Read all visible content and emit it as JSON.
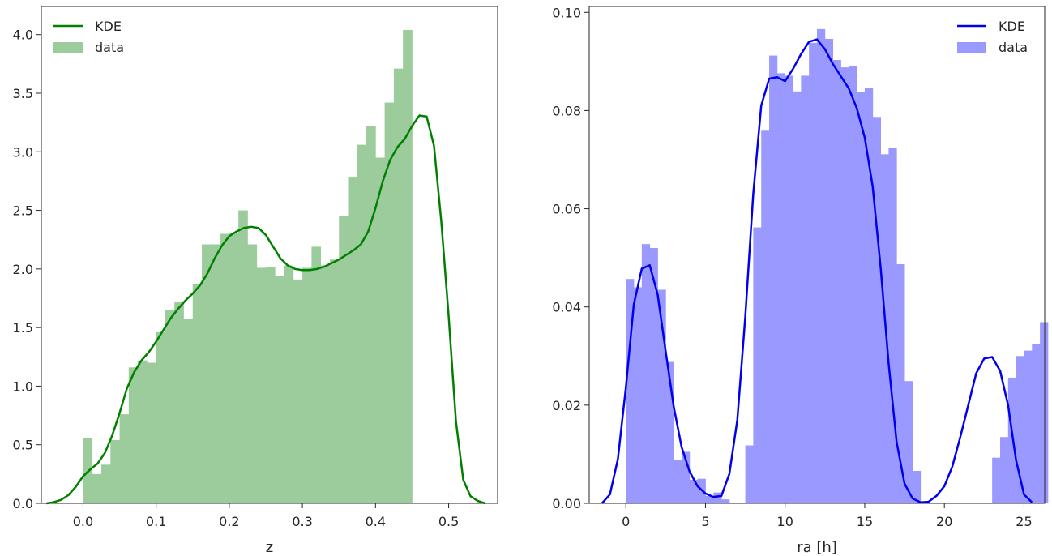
{
  "chart_data": [
    {
      "type": "bar",
      "xlabel": "z",
      "xlim": [
        -0.057,
        0.567
      ],
      "ylim": [
        0,
        4.24
      ],
      "xticks": [
        "0.0",
        "0.1",
        "0.2",
        "0.3",
        "0.4",
        "0.5"
      ],
      "yticks": [
        "0.0",
        "0.5",
        "1.0",
        "1.5",
        "2.0",
        "2.5",
        "3.0",
        "3.5",
        "4.0"
      ],
      "legend": {
        "position": "top-left",
        "entries": [
          "KDE",
          "data"
        ]
      },
      "colors": {
        "hist": "#9ccc9c",
        "kde": "#008000"
      },
      "histogram": {
        "bin_start": 0.0,
        "bin_width": 0.0125,
        "values": [
          0.56,
          0.25,
          0.33,
          0.54,
          0.76,
          1.16,
          1.22,
          1.2,
          1.46,
          1.65,
          1.72,
          1.57,
          1.87,
          2.21,
          2.21,
          2.3,
          2.31,
          2.5,
          2.21,
          2.01,
          2.02,
          1.94,
          2.03,
          1.91,
          2.01,
          2.19,
          2.03,
          2.08,
          2.45,
          2.78,
          3.06,
          3.22,
          2.95,
          3.42,
          3.71,
          4.04
        ]
      },
      "kde": {
        "x": [
          -0.05,
          -0.04,
          -0.03,
          -0.02,
          -0.01,
          0.0,
          0.01,
          0.02,
          0.03,
          0.04,
          0.05,
          0.06,
          0.07,
          0.08,
          0.09,
          0.1,
          0.11,
          0.12,
          0.13,
          0.14,
          0.15,
          0.16,
          0.17,
          0.18,
          0.19,
          0.2,
          0.21,
          0.22,
          0.23,
          0.24,
          0.25,
          0.26,
          0.27,
          0.28,
          0.29,
          0.3,
          0.31,
          0.32,
          0.33,
          0.34,
          0.35,
          0.36,
          0.37,
          0.38,
          0.39,
          0.4,
          0.41,
          0.42,
          0.43,
          0.44,
          0.45,
          0.46,
          0.47,
          0.48,
          0.49,
          0.5,
          0.51,
          0.52,
          0.53,
          0.54,
          0.55
        ],
        "y": [
          0.0,
          0.01,
          0.03,
          0.07,
          0.14,
          0.23,
          0.29,
          0.34,
          0.43,
          0.58,
          0.77,
          0.98,
          1.12,
          1.22,
          1.29,
          1.38,
          1.48,
          1.58,
          1.66,
          1.73,
          1.79,
          1.86,
          1.96,
          2.09,
          2.2,
          2.28,
          2.32,
          2.35,
          2.36,
          2.35,
          2.29,
          2.19,
          2.09,
          2.03,
          2.0,
          1.99,
          1.99,
          2.0,
          2.02,
          2.05,
          2.08,
          2.12,
          2.16,
          2.21,
          2.32,
          2.52,
          2.75,
          2.93,
          3.04,
          3.11,
          3.22,
          3.31,
          3.3,
          3.05,
          2.4,
          1.6,
          0.7,
          0.2,
          0.06,
          0.02,
          0.0
        ]
      }
    },
    {
      "type": "bar",
      "xlabel": "ra [h]",
      "xlim": [
        -2.3,
        26.3
      ],
      "ylim": [
        0,
        0.1012
      ],
      "xticks": [
        "0",
        "5",
        "10",
        "15",
        "20",
        "25"
      ],
      "yticks": [
        "0.00",
        "0.02",
        "0.04",
        "0.06",
        "0.08",
        "0.10"
      ],
      "legend": {
        "position": "top-right",
        "entries": [
          "KDE",
          "data"
        ]
      },
      "colors": {
        "hist": "#9999ff",
        "kde": "#0000ee"
      },
      "histogram": {
        "bin_start": 0.0,
        "bin_width": 0.5,
        "values": [
          0.0457,
          0.044,
          0.0528,
          0.052,
          0.0435,
          0.0288,
          0.0088,
          0.0105,
          0.0048,
          0.005,
          0.0015,
          0.0022,
          0.0008,
          0.0,
          0.0,
          0.0118,
          0.0562,
          0.0759,
          0.0912,
          0.0876,
          0.0871,
          0.0839,
          0.0871,
          0.0938,
          0.0966,
          0.0946,
          0.0903,
          0.0888,
          0.089,
          0.0837,
          0.0846,
          0.0787,
          0.0711,
          0.0724,
          0.0487,
          0.0249,
          0.0066,
          0.0,
          0.0,
          0.0,
          0.0,
          0.0,
          0.0,
          0.0,
          0.0,
          0.0,
          0.0093,
          0.0135,
          0.0256,
          0.03,
          0.0311,
          0.0325,
          0.0369
        ]
      },
      "kde": {
        "x": [
          -1.5,
          -1.0,
          -0.5,
          0.0,
          0.5,
          1.0,
          1.5,
          2.0,
          2.5,
          3.0,
          3.5,
          4.0,
          4.5,
          5.0,
          5.5,
          6.0,
          6.5,
          7.0,
          7.5,
          8.0,
          8.5,
          9.0,
          9.5,
          10.0,
          10.5,
          11.0,
          11.5,
          12.0,
          12.5,
          13.0,
          13.5,
          14.0,
          14.5,
          15.0,
          15.5,
          16.0,
          16.5,
          17.0,
          17.5,
          18.0,
          18.5,
          19.0,
          19.5,
          20.0,
          20.5,
          21.0,
          21.5,
          22.0,
          22.5,
          23.0,
          23.5,
          24.0,
          24.5,
          25.0,
          25.5
        ],
        "y": [
          0.0,
          0.0018,
          0.009,
          0.0235,
          0.0405,
          0.0478,
          0.0485,
          0.0425,
          0.031,
          0.0198,
          0.0115,
          0.0065,
          0.0035,
          0.002,
          0.0013,
          0.0015,
          0.006,
          0.017,
          0.038,
          0.063,
          0.081,
          0.0865,
          0.0868,
          0.086,
          0.0885,
          0.0915,
          0.094,
          0.0945,
          0.0925,
          0.0895,
          0.087,
          0.0845,
          0.0805,
          0.0745,
          0.0645,
          0.048,
          0.0285,
          0.0125,
          0.004,
          0.001,
          0.0002,
          0.0003,
          0.0015,
          0.0035,
          0.0075,
          0.0135,
          0.02,
          0.0265,
          0.0295,
          0.0298,
          0.027,
          0.02,
          0.0088,
          0.0018,
          0.0002
        ]
      }
    }
  ]
}
